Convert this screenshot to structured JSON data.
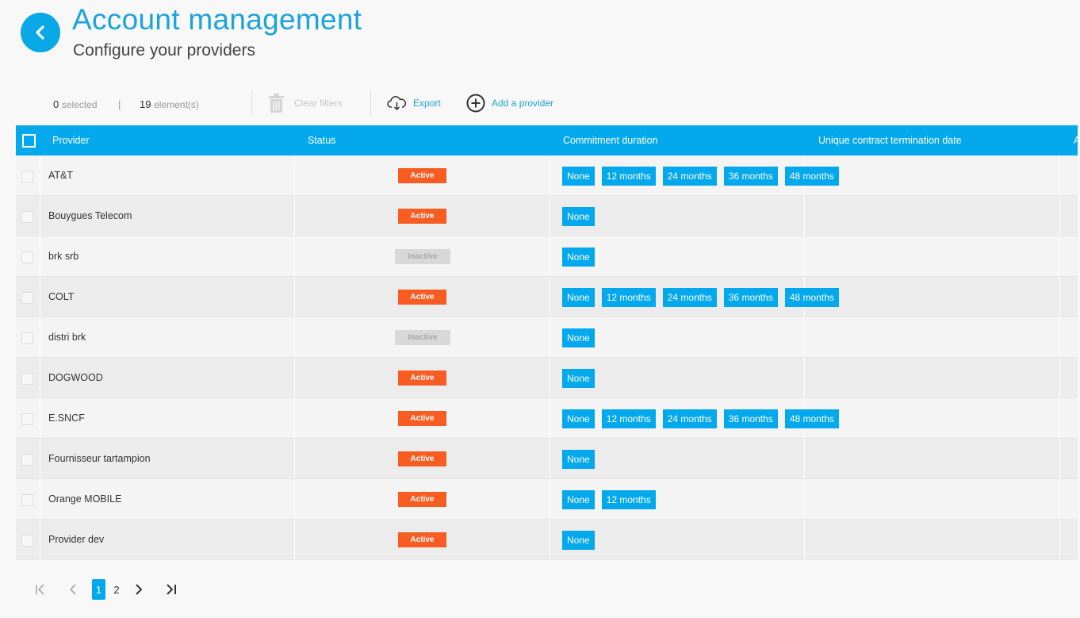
{
  "header": {
    "title": "Account management",
    "subtitle": "Configure your providers",
    "back_icon": "chevron-left-icon"
  },
  "toolbar": {
    "selected_count": "0",
    "selected_label": "selected",
    "separator": "|",
    "element_count": "19",
    "element_label": "element(s)",
    "clear_filters_label": "Clear filters",
    "export_label": "Export",
    "add_provider_label": "Add a provider"
  },
  "table": {
    "columns": {
      "provider": "Provider",
      "status": "Status",
      "commitment": "Commitment duration",
      "termination": "Unique contract termination date",
      "next": "A"
    },
    "rows": [
      {
        "name": "AT&T",
        "status": "Active",
        "state": "active",
        "durations": [
          "None",
          "12 months",
          "24 months",
          "36 months",
          "48 months"
        ]
      },
      {
        "name": "Bouygues Telecom",
        "status": "Active",
        "state": "active",
        "durations": [
          "None"
        ]
      },
      {
        "name": "brk srb",
        "status": "Inactive",
        "state": "inactive",
        "durations": [
          "None"
        ]
      },
      {
        "name": "COLT",
        "status": "Active",
        "state": "active",
        "durations": [
          "None",
          "12 months",
          "24 months",
          "36 months",
          "48 months"
        ]
      },
      {
        "name": "distri brk",
        "status": "Inactive",
        "state": "inactive",
        "durations": [
          "None"
        ]
      },
      {
        "name": "DOGWOOD",
        "status": "Active",
        "state": "active",
        "durations": [
          "None"
        ]
      },
      {
        "name": "E.SNCF",
        "status": "Active",
        "state": "active",
        "durations": [
          "None",
          "12 months",
          "24 months",
          "36 months",
          "48 months"
        ]
      },
      {
        "name": "Fournisseur tartampion",
        "status": "Active",
        "state": "active",
        "durations": [
          "None"
        ]
      },
      {
        "name": "Orange MOBILE",
        "status": "Active",
        "state": "active",
        "durations": [
          "None",
          "12 months"
        ]
      },
      {
        "name": "Provider dev",
        "status": "Active",
        "state": "active",
        "durations": [
          "None"
        ]
      }
    ]
  },
  "pagination": {
    "pages": [
      "1",
      "2"
    ],
    "current": "1"
  },
  "colors": {
    "accent": "#03a9ec",
    "active": "#f75c22",
    "inactive": "#d8d8d8"
  }
}
